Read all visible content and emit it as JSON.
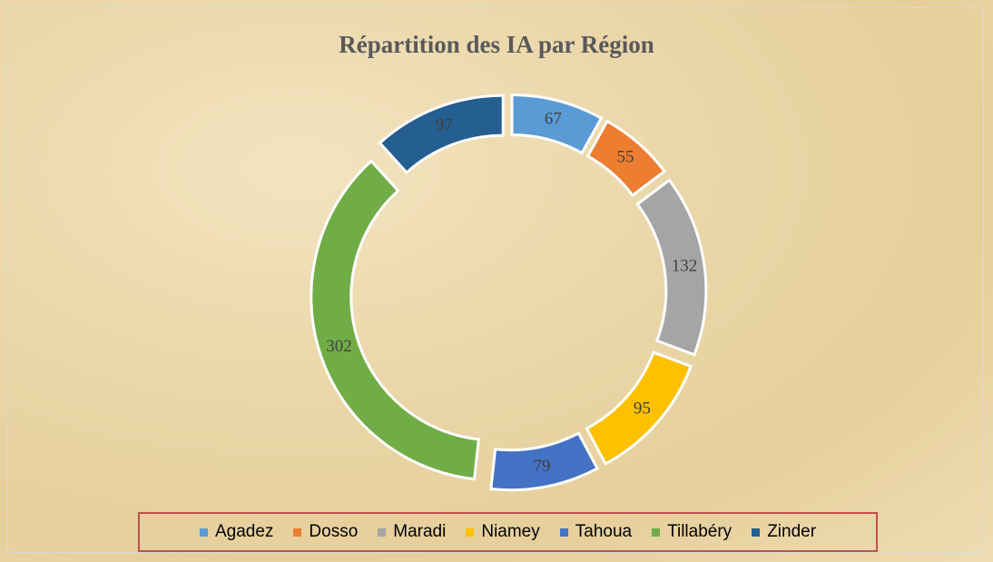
{
  "chart_data": {
    "type": "doughnut",
    "title": "Répartition des IA par Région",
    "categories": [
      "Agadez",
      "Dosso",
      "Maradi",
      "Niamey",
      "Tahoua",
      "Tillabéry",
      "Zinder"
    ],
    "values": [
      67,
      55,
      132,
      95,
      79,
      302,
      97
    ],
    "colors": [
      "#5b9bd5",
      "#ed7d31",
      "#a5a5a5",
      "#ffc000",
      "#4472c4",
      "#70ad47",
      "#255e91"
    ],
    "legend": "bottom"
  }
}
